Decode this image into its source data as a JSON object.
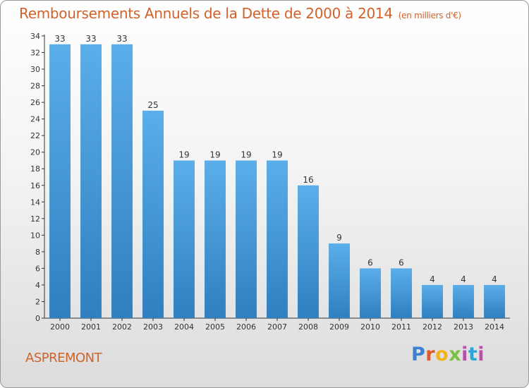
{
  "title": "Remboursements Annuels de la Dette de 2000 à 2014",
  "unit": "(en milliers d'€)",
  "commune": "ASPREMONT",
  "logo": {
    "letters": [
      "P",
      "r",
      "o",
      "x",
      "i",
      "t",
      "i"
    ]
  },
  "colors": {
    "title": "#d0622a",
    "bar_top": "#5aaee9",
    "bar_bottom": "#2f7fc1",
    "axis": "#333333"
  },
  "chart_data": {
    "type": "bar",
    "categories": [
      "2000",
      "2001",
      "2002",
      "2003",
      "2004",
      "2005",
      "2006",
      "2007",
      "2008",
      "2009",
      "2010",
      "2011",
      "2012",
      "2013",
      "2014"
    ],
    "values": [
      33,
      33,
      33,
      25,
      19,
      19,
      19,
      19,
      16,
      9,
      6,
      6,
      4,
      4,
      4
    ],
    "yticks": [
      0,
      2,
      4,
      6,
      8,
      10,
      12,
      14,
      16,
      18,
      20,
      22,
      24,
      26,
      28,
      30,
      32,
      34
    ],
    "ylim": [
      0,
      34
    ],
    "grid": false,
    "data_labels": true
  }
}
